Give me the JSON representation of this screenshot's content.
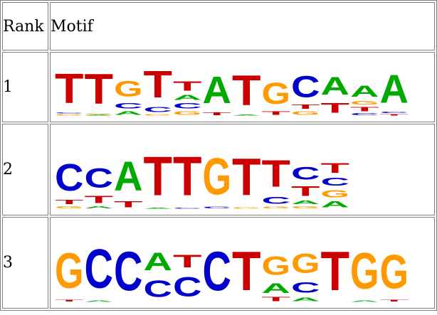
{
  "table": {
    "headers": {
      "rank": "Rank",
      "motif": "Motif"
    },
    "rows": [
      {
        "rank": "1",
        "motif": [
          [
            [
              "G",
              0.04,
              "#ff9900"
            ],
            [
              "C",
              0.02,
              "#0000cc"
            ],
            [
              "T",
              0.84,
              "#cc0000"
            ]
          ],
          [
            [
              "A",
              0.02,
              "#00aa00"
            ],
            [
              "G",
              0.03,
              "#ff9900"
            ],
            [
              "T",
              0.85,
              "#cc0000"
            ]
          ],
          [
            [
              "A",
              0.1,
              "#00aa00"
            ],
            [
              "C",
              0.16,
              "#0000cc"
            ],
            [
              "G",
              0.45,
              "#ff9900"
            ]
          ],
          [
            [
              "G",
              0.04,
              "#ff9900"
            ],
            [
              "C",
              0.14,
              "#0000cc"
            ],
            [
              "T",
              0.76,
              "#cc0000"
            ]
          ],
          [
            [
              "G",
              0.1,
              "#ff9900"
            ],
            [
              "C",
              0.16,
              "#0000cc"
            ],
            [
              "A",
              0.14,
              "#00aa00"
            ],
            [
              "T",
              0.26,
              "#cc0000"
            ]
          ],
          [
            [
              "T",
              0.08,
              "#cc0000"
            ],
            [
              "A",
              0.76,
              "#00aa00"
            ]
          ],
          [
            [
              "A",
              0.02,
              "#00aa00"
            ],
            [
              "T",
              0.86,
              "#cc0000"
            ]
          ],
          [
            [
              "T",
              0.1,
              "#cc0000"
            ],
            [
              "G",
              0.6,
              "#ff9900"
            ]
          ],
          [
            [
              "G",
              0.1,
              "#ff9900"
            ],
            [
              "T",
              0.12,
              "#cc0000"
            ],
            [
              "C",
              0.6,
              "#0000cc"
            ]
          ],
          [
            [
              "T",
              0.28,
              "#cc0000"
            ],
            [
              "A",
              0.5,
              "#00aa00"
            ]
          ],
          [
            [
              "C",
              0.06,
              "#0000cc"
            ],
            [
              "T",
              0.12,
              "#cc0000"
            ],
            [
              "G",
              0.1,
              "#ff9900"
            ],
            [
              "A",
              0.32,
              "#00aa00"
            ]
          ],
          [
            [
              "T",
              0.04,
              "#cc0000"
            ],
            [
              "C",
              0.04,
              "#0000cc"
            ],
            [
              "A",
              0.8,
              "#00aa00"
            ]
          ]
        ]
      },
      {
        "rank": "2",
        "motif": [
          [
            [
              "G",
              0.05,
              "#ff9900"
            ],
            [
              "T",
              0.08,
              "#cc0000"
            ],
            [
              "C",
              0.55,
              "#0000cc"
            ]
          ],
          [
            [
              "A",
              0.05,
              "#00aa00"
            ],
            [
              "T",
              0.15,
              "#cc0000"
            ],
            [
              "C",
              0.4,
              "#0000cc"
            ]
          ],
          [
            [
              "T",
              0.12,
              "#cc0000"
            ],
            [
              "A",
              0.6,
              "#00aa00"
            ]
          ],
          [
            [
              "A",
              0.02,
              "#00aa00"
            ],
            [
              "T",
              0.8,
              "#cc0000"
            ]
          ],
          [
            [
              "C",
              0.02,
              "#0000cc"
            ],
            [
              "T",
              0.8,
              "#cc0000"
            ]
          ],
          [
            [
              "C",
              0.04,
              "#0000cc"
            ],
            [
              "G",
              0.75,
              "#ff9900"
            ]
          ],
          [
            [
              "G",
              0.03,
              "#ff9900"
            ],
            [
              "T",
              0.76,
              "#cc0000"
            ]
          ],
          [
            [
              "G",
              0.04,
              "#ff9900"
            ],
            [
              "C",
              0.14,
              "#0000cc"
            ],
            [
              "T",
              0.55,
              "#cc0000"
            ]
          ],
          [
            [
              "G",
              0.05,
              "#ff9900"
            ],
            [
              "A",
              0.08,
              "#00aa00"
            ],
            [
              "T",
              0.2,
              "#cc0000"
            ],
            [
              "C",
              0.26,
              "#0000cc"
            ]
          ],
          [
            [
              "A",
              0.12,
              "#00aa00"
            ],
            [
              "G",
              0.15,
              "#ff9900"
            ],
            [
              "C",
              0.16,
              "#0000cc"
            ],
            [
              "T",
              0.2,
              "#cc0000"
            ]
          ]
        ]
      },
      {
        "rank": "3",
        "motif": [
          [
            [
              "T",
              0.04,
              "#cc0000"
            ],
            [
              "G",
              0.72,
              "#ff9900"
            ]
          ],
          [
            [
              "A",
              0.03,
              "#00aa00"
            ],
            [
              "C",
              0.8,
              "#0000cc"
            ]
          ],
          [
            [
              "C",
              0.8,
              "#0000cc"
            ]
          ],
          [
            [
              "C",
              0.34,
              "#0000cc"
            ],
            [
              "A",
              0.36,
              "#00aa00"
            ]
          ],
          [
            [
              "C",
              0.4,
              "#0000cc"
            ],
            [
              "T",
              0.26,
              "#cc0000"
            ]
          ],
          [
            [
              "C",
              0.8,
              "#0000cc"
            ]
          ],
          [
            [
              "T",
              0.8,
              "#cc0000"
            ]
          ],
          [
            [
              "T",
              0.08,
              "#cc0000"
            ],
            [
              "A",
              0.2,
              "#00aa00"
            ],
            [
              "G",
              0.38,
              "#ff9900"
            ]
          ],
          [
            [
              "A",
              0.08,
              "#00aa00"
            ],
            [
              "C",
              0.22,
              "#0000cc"
            ],
            [
              "G",
              0.4,
              "#ff9900"
            ]
          ],
          [
            [
              "T",
              0.8,
              "#cc0000"
            ]
          ],
          [
            [
              "A",
              0.03,
              "#00aa00"
            ],
            [
              "G",
              0.74,
              "#ff9900"
            ]
          ],
          [
            [
              "T",
              0.04,
              "#cc0000"
            ],
            [
              "G",
              0.7,
              "#ff9900"
            ]
          ]
        ]
      }
    ]
  }
}
